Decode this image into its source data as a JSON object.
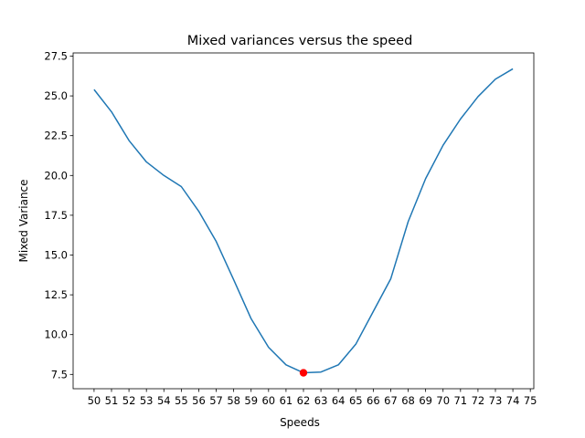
{
  "chart_data": {
    "type": "line",
    "title": "Mixed variances versus the speed",
    "xlabel": "Speeds",
    "ylabel": "Mixed Variance",
    "xlim": [
      48.8,
      75.2
    ],
    "ylim": [
      6.6,
      27.7
    ],
    "x_ticks": [
      50,
      51,
      52,
      53,
      54,
      55,
      56,
      57,
      58,
      59,
      60,
      61,
      62,
      63,
      64,
      65,
      66,
      67,
      68,
      69,
      70,
      71,
      72,
      73,
      74,
      75
    ],
    "y_ticks": [
      "7.5",
      "10.0",
      "12.5",
      "15.0",
      "17.5",
      "20.0",
      "22.5",
      "25.0",
      "27.5"
    ],
    "grid": false,
    "series": [
      {
        "color": "#1f77b4",
        "x": [
          50,
          51,
          52,
          53,
          54,
          55,
          56,
          57,
          58,
          59,
          60,
          61,
          62,
          63,
          64,
          65,
          66,
          67,
          68,
          69,
          70,
          71,
          72,
          73,
          74
        ],
        "values": [
          25.4,
          24.0,
          22.2,
          20.85,
          20.0,
          19.3,
          17.75,
          15.85,
          13.45,
          11.0,
          9.2,
          8.1,
          7.6,
          7.65,
          8.1,
          9.4,
          11.45,
          13.5,
          17.1,
          19.8,
          21.9,
          23.55,
          24.95,
          26.05,
          26.7
        ]
      }
    ],
    "highlight_point": {
      "x": 62,
      "y": 7.6,
      "color": "#ff0000"
    }
  }
}
